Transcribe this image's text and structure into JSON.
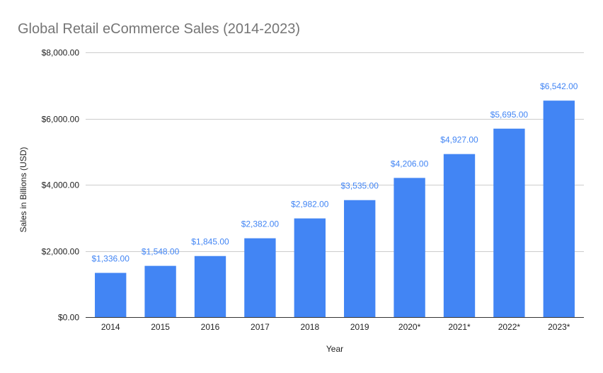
{
  "chart_data": {
    "type": "bar",
    "title": "Global Retail eCommerce Sales (2014-2023)",
    "xlabel": "Year",
    "ylabel": "Sales in Billions (USD)",
    "categories": [
      "2014",
      "2015",
      "2016",
      "2017",
      "2018",
      "2019",
      "2020*",
      "2021*",
      "2022*",
      "2023*"
    ],
    "values": [
      1336,
      1548,
      1845,
      2382,
      2982,
      3535,
      4206,
      4927,
      5695,
      6542
    ],
    "value_labels": [
      "$1,336.00",
      "$1,548.00",
      "$1,845.00",
      "$2,382.00",
      "$2,982.00",
      "$3,535.00",
      "$4,206.00",
      "$4,927.00",
      "$5,695.00",
      "$6,542.00"
    ],
    "ylim": [
      0,
      8000
    ],
    "y_ticks": [
      0,
      2000,
      4000,
      6000,
      8000
    ],
    "y_tick_labels": [
      "$0.00",
      "$2,000.00",
      "$4,000.00",
      "$6,000.00",
      "$8,000.00"
    ],
    "grid": true,
    "legend": "none",
    "colors": {
      "bar": "#4285f4",
      "data_label": "#4285f4"
    }
  }
}
